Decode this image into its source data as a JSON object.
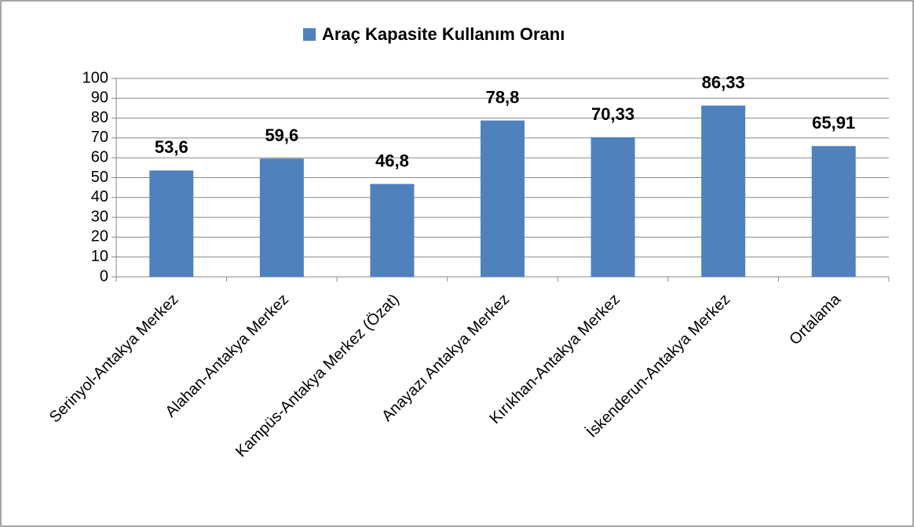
{
  "chart_data": {
    "type": "bar",
    "categories": [
      "Serinyol-Antakya Merkez",
      "Alahan-Antakya Merkez",
      "Kampüs-Antakya Merkez (Özat)",
      "Anayazı Antakya Merkez",
      "Kırıkhan-Antakya Merkez",
      "İskenderun-Antakya Merkez",
      "Ortalama"
    ],
    "series": [
      {
        "name": "Araç Kapasite Kullanım Oranı",
        "color": "#4f81bd",
        "values": [
          53.6,
          59.6,
          46.8,
          78.8,
          70.33,
          86.33,
          65.91
        ],
        "value_labels": [
          "53,6",
          "59,6",
          "46,8",
          "78,8",
          "70,33",
          "86,33",
          "65,91"
        ]
      }
    ],
    "ylim": [
      0,
      100
    ],
    "yticks": [
      0,
      10,
      20,
      30,
      40,
      50,
      60,
      70,
      80,
      90,
      100
    ],
    "grid": true,
    "legend": "top"
  }
}
